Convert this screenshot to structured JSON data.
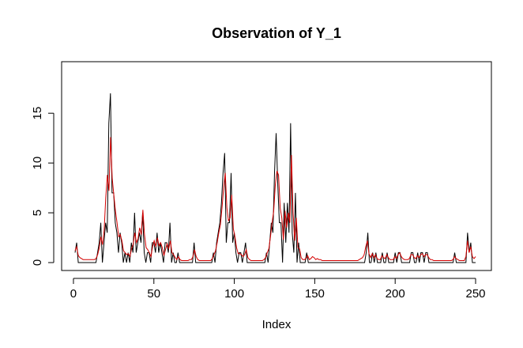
{
  "chart_data": {
    "type": "line",
    "title": "Observation of Y_1",
    "xlabel": "Index",
    "ylabel": "",
    "xlim": [
      1,
      250
    ],
    "ylim": [
      0,
      17
    ],
    "x_ticks": [
      0,
      50,
      100,
      150,
      200,
      250
    ],
    "y_ticks": [
      0,
      5,
      10,
      15
    ],
    "grid": false,
    "legend": "none",
    "series": [
      {
        "color": "#000000",
        "values": [
          1,
          2,
          0,
          0,
          0,
          0,
          0,
          0,
          0,
          0,
          0,
          0,
          0,
          0,
          1,
          2,
          4,
          0,
          2,
          4,
          3,
          14,
          17,
          7,
          7,
          4,
          3,
          1,
          3,
          2,
          0,
          1,
          0,
          1,
          0,
          2,
          1,
          5,
          1,
          2,
          3,
          2,
          5,
          1,
          0,
          1,
          1,
          0,
          2,
          2,
          1,
          3,
          1,
          2,
          1,
          0,
          2,
          2,
          1,
          4,
          0,
          1,
          0,
          0,
          1,
          0,
          0,
          0,
          0,
          0,
          0,
          0,
          0,
          0,
          2,
          0,
          0,
          0,
          0,
          0,
          0,
          0,
          0,
          0,
          0,
          0,
          1,
          0,
          2,
          3,
          4,
          6,
          9,
          11,
          2,
          4,
          4,
          9,
          2,
          3,
          1,
          0,
          1,
          1,
          0,
          1,
          2,
          0,
          0,
          0,
          0,
          0,
          0,
          0,
          0,
          0,
          0,
          0,
          0,
          1,
          0,
          2,
          4,
          3,
          9,
          13,
          8,
          4,
          4,
          0,
          6,
          2,
          6,
          3,
          14,
          3,
          1,
          7,
          0,
          2,
          0,
          0,
          0,
          0,
          1,
          0,
          0,
          0,
          0,
          0,
          0,
          0,
          0,
          0,
          0,
          0,
          0,
          0,
          0,
          0,
          0,
          0,
          0,
          0,
          0,
          0,
          0,
          0,
          0,
          0,
          0,
          0,
          0,
          0,
          0,
          0,
          0,
          0,
          0,
          0,
          0,
          1,
          3,
          0,
          0,
          1,
          0,
          1,
          0,
          0,
          0,
          1,
          0,
          0,
          1,
          0,
          0,
          0,
          0,
          1,
          0,
          1,
          1,
          0,
          0,
          0,
          0,
          0,
          0,
          1,
          1,
          0,
          0,
          1,
          0,
          1,
          1,
          0,
          1,
          1,
          0,
          0,
          0,
          0,
          0,
          0,
          0,
          0,
          0,
          0,
          0,
          0,
          0,
          0,
          0,
          0,
          1,
          0,
          0,
          0,
          0,
          0,
          0,
          0,
          3,
          1,
          2,
          0,
          0,
          0
        ]
      },
      {
        "color": "#d40000",
        "values": [
          1.2,
          1.6,
          0.7,
          0.5,
          0.4,
          0.3,
          0.3,
          0.3,
          0.3,
          0.3,
          0.3,
          0.3,
          0.3,
          0.4,
          0.8,
          1.5,
          2.6,
          1.8,
          3.2,
          6.5,
          8.8,
          7.2,
          12.6,
          8.5,
          6.8,
          5.2,
          4.0,
          2.6,
          2.8,
          2.2,
          1.2,
          1.0,
          0.8,
          0.9,
          0.6,
          1.4,
          1.8,
          3.0,
          2.0,
          2.4,
          3.5,
          2.8,
          5.3,
          2.8,
          1.5,
          1.3,
          1.0,
          0.6,
          1.6,
          2.2,
          1.6,
          2.5,
          1.7,
          2.0,
          1.5,
          0.7,
          1.3,
          1.9,
          1.4,
          2.2,
          1.0,
          0.8,
          0.5,
          0.3,
          0.6,
          0.3,
          0.2,
          0.2,
          0.2,
          0.2,
          0.2,
          0.3,
          0.3,
          0.6,
          1.3,
          0.6,
          0.3,
          0.2,
          0.2,
          0.2,
          0.2,
          0.2,
          0.2,
          0.2,
          0.2,
          0.4,
          0.8,
          1.2,
          2.0,
          3.0,
          3.8,
          5.5,
          7.5,
          9.0,
          5.5,
          4.2,
          4.5,
          6.8,
          3.4,
          2.6,
          1.5,
          0.9,
          0.9,
          0.8,
          0.6,
          0.8,
          1.3,
          0.5,
          0.3,
          0.2,
          0.2,
          0.2,
          0.2,
          0.2,
          0.2,
          0.2,
          0.2,
          0.3,
          0.5,
          1.0,
          1.4,
          2.6,
          4.0,
          5.2,
          7.8,
          9.2,
          8.8,
          5.5,
          4.5,
          2.3,
          5.2,
          3.5,
          5.0,
          4.0,
          10.8,
          5.0,
          2.2,
          4.5,
          1.5,
          1.4,
          0.5,
          0.3,
          0.3,
          0.4,
          0.7,
          0.3,
          0.4,
          0.6,
          0.5,
          0.3,
          0.4,
          0.3,
          0.3,
          0.2,
          0.2,
          0.2,
          0.2,
          0.2,
          0.2,
          0.2,
          0.2,
          0.2,
          0.2,
          0.2,
          0.2,
          0.2,
          0.2,
          0.2,
          0.2,
          0.2,
          0.2,
          0.2,
          0.2,
          0.2,
          0.2,
          0.2,
          0.3,
          0.4,
          0.5,
          0.8,
          1.6,
          2.2,
          0.9,
          0.5,
          0.9,
          0.5,
          0.8,
          0.4,
          0.3,
          0.3,
          0.7,
          0.5,
          0.4,
          0.8,
          0.5,
          0.3,
          0.3,
          0.3,
          0.6,
          0.4,
          0.8,
          1.0,
          0.6,
          0.4,
          0.3,
          0.3,
          0.3,
          0.4,
          0.8,
          0.8,
          0.5,
          0.4,
          0.7,
          0.5,
          0.8,
          0.9,
          0.6,
          0.8,
          0.8,
          0.5,
          0.3,
          0.3,
          0.2,
          0.2,
          0.2,
          0.2,
          0.2,
          0.2,
          0.2,
          0.2,
          0.2,
          0.2,
          0.2,
          0.2,
          0.3,
          0.6,
          0.4,
          0.3,
          0.2,
          0.2,
          0.2,
          0.2,
          0.6,
          2.2,
          1.0,
          1.6,
          0.6,
          0.4,
          0.6
        ]
      }
    ]
  }
}
